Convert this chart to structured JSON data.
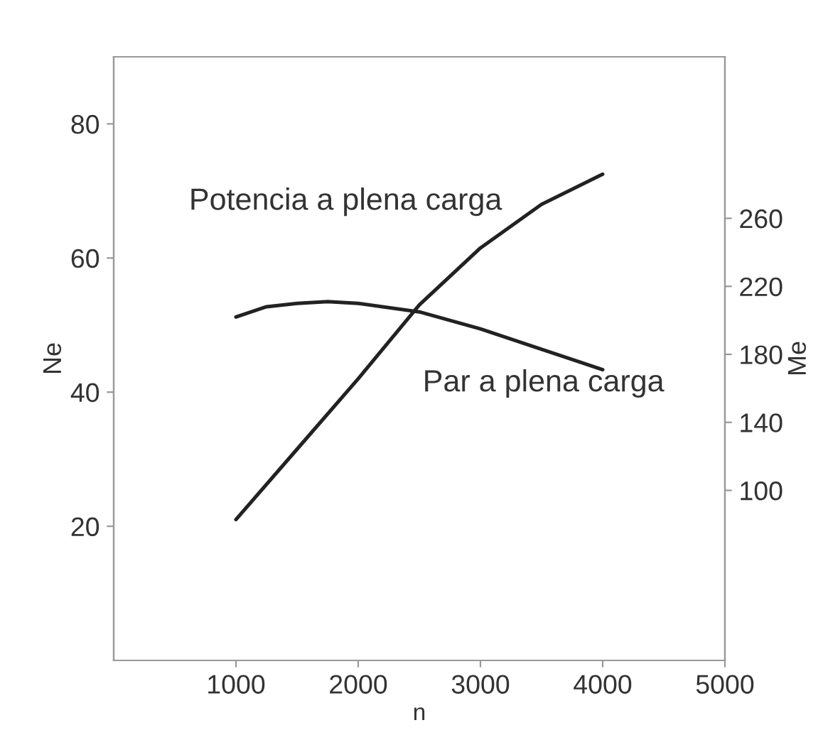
{
  "chart_data": {
    "type": "line",
    "xlabel": "n",
    "ylabel": "Ne",
    "y2label": "Me",
    "xlim": [
      0,
      5000
    ],
    "xticks": [
      1000,
      2000,
      3000,
      4000,
      5000
    ],
    "ylim": [
      0,
      90
    ],
    "yticks": [
      20,
      40,
      60,
      80
    ],
    "y2lim": [
      0,
      355
    ],
    "y2ticks": [
      100,
      140,
      180,
      220,
      260
    ],
    "grid": false,
    "legend": false,
    "series": [
      {
        "name": "Potencia a plena carga",
        "color": "#222222",
        "x": [
          1000,
          1500,
          2000,
          2500,
          3000,
          3500,
          4000
        ],
        "values": [
          21,
          31.5,
          42,
          53,
          61.5,
          68,
          72.5
        ]
      },
      {
        "name": "Par a plena carga",
        "color": "#222222",
        "axis": "y2",
        "x": [
          1000,
          1250,
          1500,
          1750,
          2000,
          2500,
          3000,
          3500,
          4000
        ],
        "values": [
          202,
          208,
          210,
          211,
          210,
          205,
          195,
          183,
          171
        ]
      }
    ]
  }
}
